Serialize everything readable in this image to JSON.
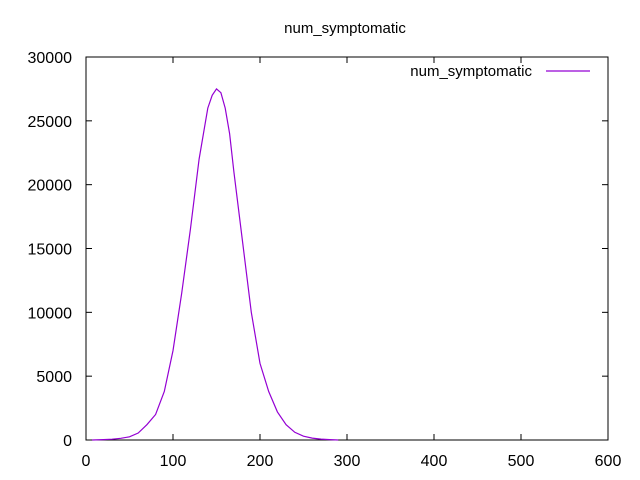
{
  "chart_data": {
    "type": "line",
    "title": "num_symptomatic",
    "xlabel": "",
    "ylabel": "",
    "xlim": [
      0,
      600
    ],
    "ylim": [
      0,
      30000
    ],
    "xticks": [
      0,
      100,
      200,
      300,
      400,
      500,
      600
    ],
    "yticks": [
      0,
      5000,
      10000,
      15000,
      20000,
      25000,
      30000
    ],
    "grid": false,
    "legend_position": "top-right",
    "colors": {
      "series": "#9400d3",
      "axis": "#000000"
    },
    "series": [
      {
        "name": "num_symptomatic",
        "x": [
          7,
          20,
          30,
          40,
          50,
          60,
          70,
          80,
          90,
          100,
          110,
          120,
          130,
          140,
          145,
          150,
          155,
          160,
          165,
          170,
          180,
          190,
          200,
          210,
          220,
          230,
          240,
          250,
          260,
          270,
          280,
          290
        ],
        "values": [
          0,
          30,
          60,
          130,
          250,
          550,
          1200,
          2000,
          3800,
          7000,
          11500,
          16500,
          22000,
          26000,
          27000,
          27500,
          27200,
          26000,
          24000,
          21000,
          15500,
          10000,
          6000,
          3800,
          2200,
          1200,
          600,
          300,
          150,
          70,
          30,
          0
        ]
      }
    ]
  }
}
